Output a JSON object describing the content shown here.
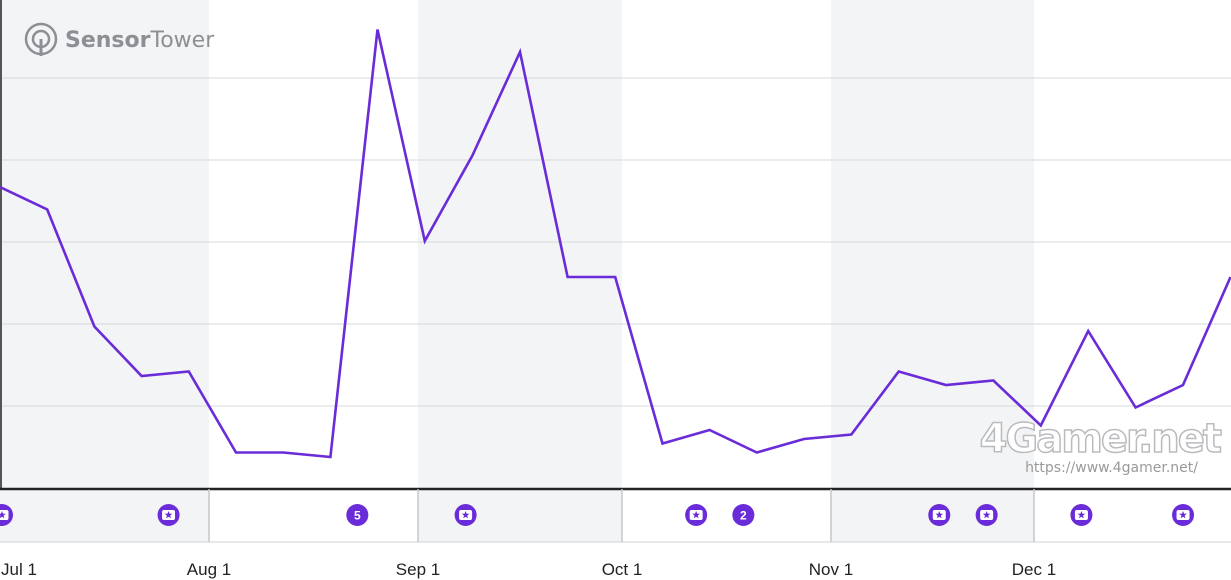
{
  "brand": {
    "name_part1": "Sensor",
    "name_part2": "Tower",
    "icon": "sensor-tower-logo-icon"
  },
  "watermark": {
    "text": "4Gamer.net",
    "url": "https://www.4gamer.net/"
  },
  "colors": {
    "line": "#6a2bd8",
    "band": "#f3f4f6",
    "grid": "#d6d8db",
    "axis": "#222222",
    "badge": "#6a2bd8"
  },
  "chart_data": {
    "type": "line",
    "title": "",
    "xlabel": "",
    "ylabel": "",
    "grid": true,
    "x_tick_labels": [
      "Jul 1",
      "Aug 1",
      "Sep 1",
      "Oct 1",
      "Nov 1",
      "Dec 1"
    ],
    "y_range": [
      0,
      100
    ],
    "series": [
      {
        "x": [
          "2024-07-01",
          "2024-07-08",
          "2024-07-15",
          "2024-07-22",
          "2024-07-29",
          "2024-08-05",
          "2024-08-12",
          "2024-08-19",
          "2024-08-26",
          "2024-09-02",
          "2024-09-09",
          "2024-09-16",
          "2024-09-23",
          "2024-09-30",
          "2024-10-07",
          "2024-10-14",
          "2024-10-21",
          "2024-10-28",
          "2024-11-04",
          "2024-11-11",
          "2024-11-18",
          "2024-11-25",
          "2024-12-02",
          "2024-12-09",
          "2024-12-16",
          "2024-12-23",
          "2024-12-30"
        ],
        "values": [
          64,
          59,
          33,
          22,
          23,
          5,
          5,
          4,
          99,
          52,
          71,
          94,
          44,
          44,
          7,
          10,
          5,
          8,
          9,
          23,
          20,
          21,
          11,
          32,
          15,
          20,
          44
        ]
      }
    ],
    "events": [
      {
        "date": "2024-06-30",
        "kind": "star"
      },
      {
        "date": "2024-07-26",
        "kind": "star"
      },
      {
        "date": "2024-08-23",
        "kind": "count",
        "label": "5"
      },
      {
        "date": "2024-09-08",
        "kind": "star"
      },
      {
        "date": "2024-10-12",
        "kind": "star"
      },
      {
        "date": "2024-10-19",
        "kind": "count",
        "label": "2"
      },
      {
        "date": "2024-11-17",
        "kind": "star"
      },
      {
        "date": "2024-11-24",
        "kind": "star"
      },
      {
        "date": "2024-12-08",
        "kind": "star"
      },
      {
        "date": "2024-12-23",
        "kind": "star"
      }
    ]
  }
}
